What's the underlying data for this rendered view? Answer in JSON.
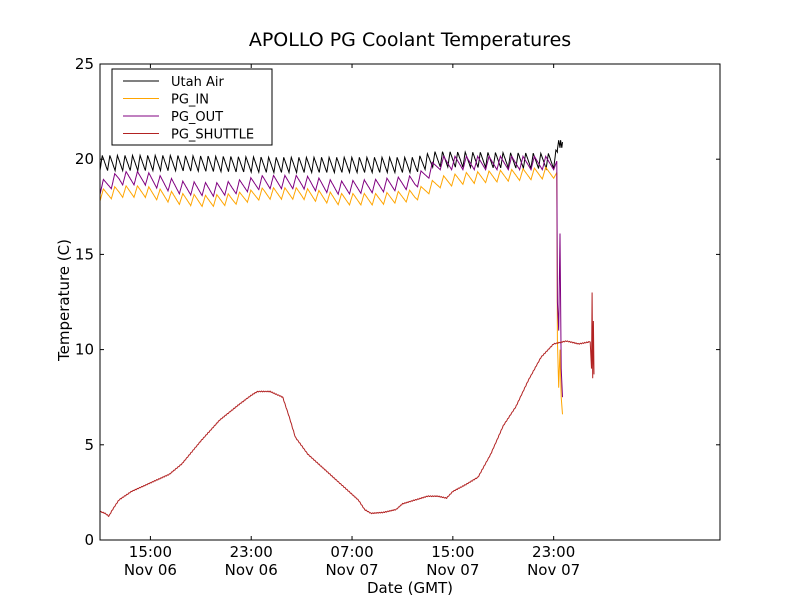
{
  "chart_data": {
    "type": "line",
    "title": "APOLLO PG Coolant Temperatures",
    "xlabel": "Date (GMT)",
    "ylabel": "Temperature (C)",
    "xlim": [
      11.0,
      60.2
    ],
    "ylim": [
      0,
      25
    ],
    "x_units": "hours since Nov 06 00:00 GMT",
    "yticks": [
      0,
      5,
      10,
      15,
      20,
      25
    ],
    "xticks": [
      {
        "x": 15,
        "line1": "15:00",
        "line2": "Nov 06"
      },
      {
        "x": 23,
        "line1": "23:00",
        "line2": "Nov 06"
      },
      {
        "x": 31,
        "line1": "07:00",
        "line2": "Nov 07"
      },
      {
        "x": 39,
        "line1": "15:00",
        "line2": "Nov 07"
      },
      {
        "x": 47,
        "line1": "23:00",
        "line2": "Nov 07"
      }
    ],
    "legend_position": "top-left",
    "series": [
      {
        "name": "Utah Air",
        "color": "#000000",
        "base_points": [
          [
            11.0,
            19.8
          ],
          [
            16.0,
            19.8
          ],
          [
            25.0,
            19.7
          ],
          [
            36.0,
            19.7
          ],
          [
            37.5,
            20.0
          ],
          [
            47.0,
            19.9
          ],
          [
            47.3,
            20.2
          ]
        ],
        "osc_amplitude": 0.4,
        "osc_period": 0.6,
        "tail": [
          [
            47.3,
            20.5
          ],
          [
            47.4,
            21.0
          ],
          [
            47.5,
            20.6
          ],
          [
            47.55,
            21.0
          ],
          [
            47.65,
            20.6
          ],
          [
            47.7,
            20.9
          ]
        ]
      },
      {
        "name": "PG_IN",
        "color": "#ffa500",
        "base_points": [
          [
            11.0,
            18.1
          ],
          [
            12.5,
            18.3
          ],
          [
            14.5,
            18.3
          ],
          [
            17.5,
            17.9
          ],
          [
            19.5,
            17.8
          ],
          [
            21.5,
            17.9
          ],
          [
            24.0,
            18.2
          ],
          [
            27.0,
            18.2
          ],
          [
            30.0,
            17.9
          ],
          [
            33.0,
            17.9
          ],
          [
            36.0,
            18.1
          ],
          [
            38.0,
            18.8
          ],
          [
            40.0,
            19.0
          ],
          [
            47.0,
            19.3
          ]
        ],
        "osc_amplitude": 0.3,
        "osc_period": 0.9,
        "tail": [
          [
            47.25,
            19.3
          ],
          [
            47.3,
            10.5
          ],
          [
            47.4,
            8.0
          ],
          [
            47.5,
            10.0
          ],
          [
            47.6,
            7.5
          ],
          [
            47.7,
            6.6
          ]
        ]
      },
      {
        "name": "PG_OUT",
        "color": "#800080",
        "base_points": [
          [
            11.0,
            18.5
          ],
          [
            12.5,
            19.0
          ],
          [
            14.5,
            19.0
          ],
          [
            17.5,
            18.5
          ],
          [
            20.0,
            18.4
          ],
          [
            21.5,
            18.5
          ],
          [
            24.0,
            18.8
          ],
          [
            27.0,
            18.8
          ],
          [
            30.0,
            18.5
          ],
          [
            33.0,
            18.6
          ],
          [
            36.0,
            18.8
          ],
          [
            38.0,
            19.8
          ],
          [
            40.0,
            19.8
          ],
          [
            47.0,
            19.8
          ]
        ],
        "osc_amplitude": 0.35,
        "osc_period": 0.9,
        "tail": [
          [
            47.25,
            19.9
          ],
          [
            47.3,
            12.5
          ],
          [
            47.4,
            11.0
          ],
          [
            47.5,
            16.1
          ],
          [
            47.6,
            9.0
          ],
          [
            47.7,
            7.5
          ]
        ]
      },
      {
        "name": "PG_SHUTTLE",
        "color": "#b22222",
        "base_points": [
          [
            11.0,
            1.5
          ],
          [
            11.4,
            1.4
          ],
          [
            11.7,
            1.25
          ],
          [
            12.0,
            1.6
          ],
          [
            12.5,
            2.1
          ],
          [
            13.5,
            2.55
          ],
          [
            15.0,
            3.0
          ],
          [
            16.5,
            3.45
          ],
          [
            17.5,
            4.0
          ],
          [
            19.0,
            5.2
          ],
          [
            20.5,
            6.3
          ],
          [
            22.0,
            7.1
          ],
          [
            23.0,
            7.6
          ],
          [
            23.5,
            7.8
          ],
          [
            24.5,
            7.8
          ],
          [
            25.5,
            7.5
          ],
          [
            26.0,
            6.5
          ],
          [
            26.5,
            5.4
          ],
          [
            27.5,
            4.5
          ],
          [
            29.0,
            3.6
          ],
          [
            30.5,
            2.7
          ],
          [
            31.5,
            2.1
          ],
          [
            32.0,
            1.6
          ],
          [
            32.5,
            1.4
          ],
          [
            33.5,
            1.45
          ],
          [
            34.5,
            1.6
          ],
          [
            35.0,
            1.9
          ],
          [
            36.0,
            2.1
          ],
          [
            37.0,
            2.3
          ],
          [
            37.8,
            2.3
          ],
          [
            38.5,
            2.2
          ],
          [
            39.0,
            2.55
          ],
          [
            40.0,
            2.9
          ],
          [
            41.0,
            3.3
          ],
          [
            42.0,
            4.5
          ],
          [
            43.0,
            6.0
          ],
          [
            44.0,
            7.0
          ],
          [
            45.0,
            8.4
          ],
          [
            46.0,
            9.6
          ],
          [
            47.0,
            10.3
          ],
          [
            48.0,
            10.45
          ],
          [
            49.0,
            10.3
          ],
          [
            49.8,
            10.4
          ]
        ],
        "tail": [
          [
            49.9,
            10.4
          ],
          [
            50.0,
            9.0
          ],
          [
            50.05,
            13.0
          ],
          [
            50.1,
            8.5
          ],
          [
            50.15,
            11.5
          ],
          [
            50.2,
            8.7
          ]
        ]
      }
    ]
  }
}
